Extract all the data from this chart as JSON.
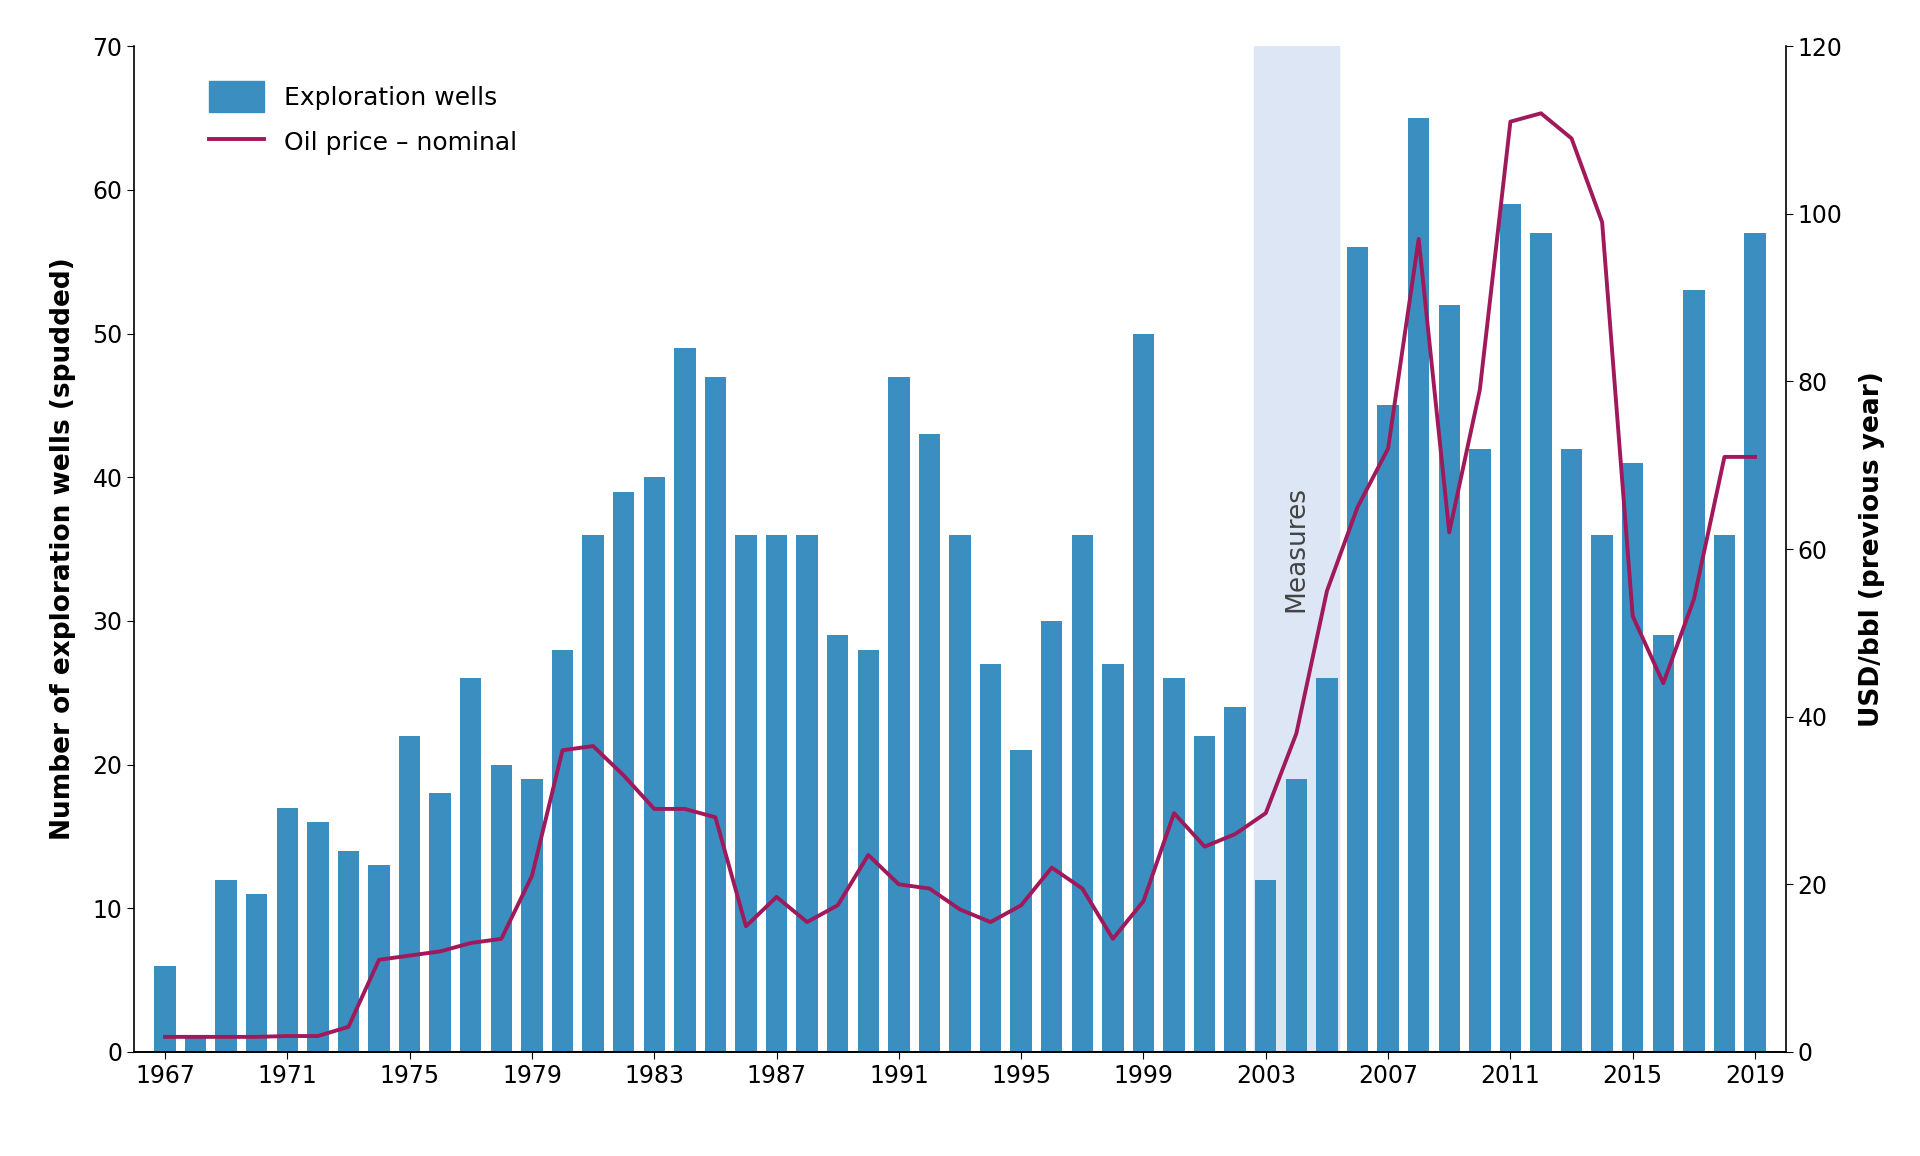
{
  "years": [
    1967,
    1968,
    1969,
    1970,
    1971,
    1972,
    1973,
    1974,
    1975,
    1976,
    1977,
    1978,
    1979,
    1980,
    1981,
    1982,
    1983,
    1984,
    1985,
    1986,
    1987,
    1988,
    1989,
    1990,
    1991,
    1992,
    1993,
    1994,
    1995,
    1996,
    1997,
    1998,
    1999,
    2000,
    2001,
    2002,
    2003,
    2004,
    2005,
    2006,
    2007,
    2008,
    2009,
    2010,
    2011,
    2012,
    2013,
    2014,
    2015,
    2016,
    2017,
    2018,
    2019
  ],
  "wells": [
    6,
    1,
    12,
    11,
    17,
    16,
    14,
    13,
    22,
    18,
    26,
    20,
    19,
    28,
    36,
    39,
    40,
    49,
    47,
    36,
    36,
    36,
    29,
    28,
    47,
    43,
    36,
    27,
    21,
    30,
    36,
    27,
    50,
    26,
    22,
    24,
    12,
    19,
    26,
    56,
    45,
    65,
    52,
    42,
    59,
    57,
    42,
    36,
    41,
    29,
    53,
    36,
    57
  ],
  "oil_price": [
    1.8,
    1.8,
    1.8,
    1.8,
    1.9,
    1.9,
    3.0,
    11.0,
    11.5,
    12.0,
    13.0,
    13.5,
    21.0,
    36.0,
    36.5,
    33.0,
    29.0,
    29.0,
    28.0,
    15.0,
    18.5,
    15.5,
    17.5,
    23.5,
    20.0,
    19.5,
    17.0,
    15.5,
    17.5,
    22.0,
    19.5,
    13.5,
    18.0,
    28.5,
    24.5,
    26.0,
    28.5,
    38.0,
    55.0,
    65.0,
    72.0,
    97.0,
    62.0,
    79.0,
    111.0,
    112.0,
    109.0,
    99.0,
    52.0,
    44.0,
    54.0,
    71.0,
    71.0
  ],
  "bar_color": "#3a8fc0",
  "line_color": "#a0195a",
  "shade_start": 2002.6,
  "shade_end": 2005.4,
  "shade_color": "#dce6f5",
  "measures_text": "Measures",
  "ylabel_left": "Number of exploration wells (spudded)",
  "ylabel_right": "USD/bbl (previous year)",
  "ylim_left": [
    0,
    70
  ],
  "ylim_right": [
    0,
    120
  ],
  "yticks_left": [
    0,
    10,
    20,
    30,
    40,
    50,
    60,
    70
  ],
  "yticks_right": [
    0,
    20,
    40,
    60,
    80,
    100,
    120
  ],
  "xtick_labels": [
    "1967",
    "1971",
    "1975",
    "1979",
    "1983",
    "1987",
    "1991",
    "1995",
    "1999",
    "2003",
    "2007",
    "2011",
    "2015",
    "2019"
  ],
  "xtick_positions": [
    1967,
    1971,
    1975,
    1979,
    1983,
    1987,
    1991,
    1995,
    1999,
    2003,
    2007,
    2011,
    2015,
    2019
  ],
  "legend_exploration": "Exploration wells",
  "legend_oil": "Oil price – nominal",
  "background_color": "#ffffff",
  "bar_edge_color": "none",
  "bar_width": 0.7,
  "line_width": 2.8
}
